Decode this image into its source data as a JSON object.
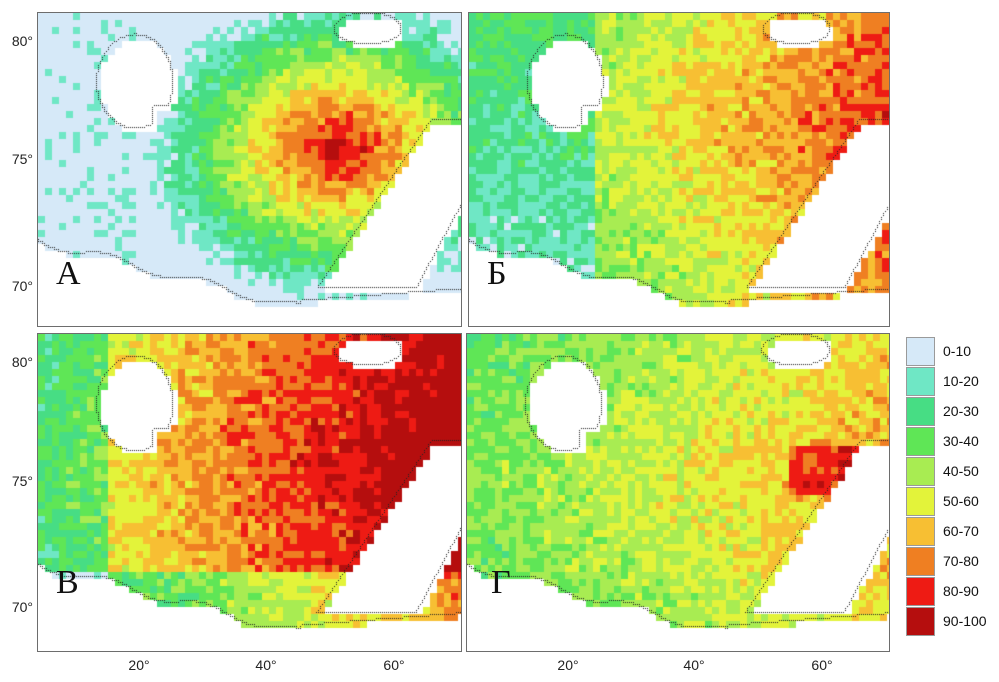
{
  "panels": [
    {
      "id": "A",
      "label": "А"
    },
    {
      "id": "B",
      "label": "Б"
    },
    {
      "id": "V",
      "label": "В"
    },
    {
      "id": "G",
      "label": "Г"
    }
  ],
  "axes": {
    "lat_ticks": [
      "80°",
      "75°",
      "70°"
    ],
    "lon_ticks": [
      "20°",
      "40°",
      "60°"
    ]
  },
  "legend": {
    "items": [
      {
        "label": "0-10",
        "color": "#d6e9f8"
      },
      {
        "label": "10-20",
        "color": "#6fe7c5"
      },
      {
        "label": "20-30",
        "color": "#47dd84"
      },
      {
        "label": "30-40",
        "color": "#5fe656"
      },
      {
        "label": "40-50",
        "color": "#a8ec52"
      },
      {
        "label": "50-60",
        "color": "#e3f33a"
      },
      {
        "label": "60-70",
        "color": "#f7bf33"
      },
      {
        "label": "70-80",
        "color": "#ef7f22"
      },
      {
        "label": "80-90",
        "color": "#ee1b14"
      },
      {
        "label": "90-100",
        "color": "#b50e0e"
      }
    ]
  }
}
